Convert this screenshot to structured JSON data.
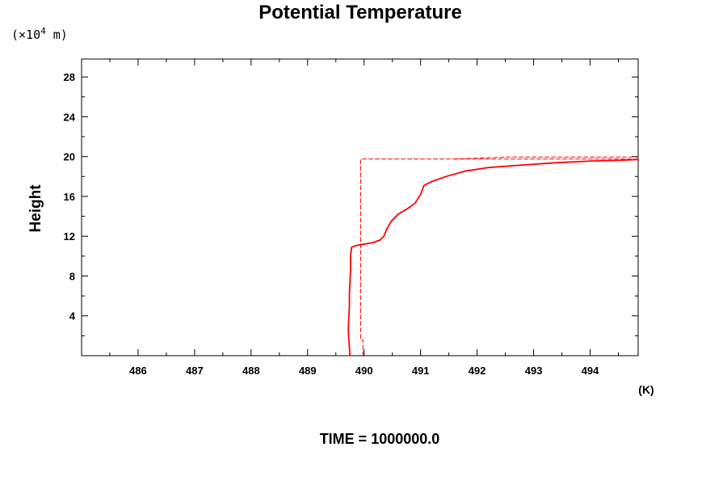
{
  "chart_data": {
    "type": "line",
    "title": "Potential Temperature",
    "ylabel": "Height",
    "y_unit_prefix": "(×10",
    "y_unit_exponent": "4",
    "y_unit_suffix": " m)",
    "x_unit": "(K)",
    "footer": "TIME = 1000000.0",
    "xlim": [
      485.0,
      494.85
    ],
    "ylim": [
      0,
      29.8
    ],
    "x_ticks": [
      486,
      487,
      488,
      489,
      490,
      491,
      492,
      493,
      494
    ],
    "x_tick_labels": [
      "486",
      "487",
      "488",
      "489",
      "490",
      "491",
      "492",
      "493",
      "494"
    ],
    "y_ticks": [
      4,
      8,
      12,
      16,
      20,
      24,
      28
    ],
    "y_tick_labels": [
      "4",
      "8",
      "12",
      "16",
      "20",
      "24",
      "28"
    ],
    "grid": false,
    "colors": {
      "series": "#ff0000",
      "axes": "#000000",
      "background": "#ffffff"
    },
    "series": [
      {
        "style": "solid",
        "points": [
          [
            489.75,
            0.0
          ],
          [
            489.74,
            0.8
          ],
          [
            489.73,
            1.6
          ],
          [
            489.72,
            2.6
          ],
          [
            489.73,
            3.8
          ],
          [
            489.74,
            5.0
          ],
          [
            489.74,
            6.2
          ],
          [
            489.75,
            7.4
          ],
          [
            489.76,
            8.6
          ],
          [
            489.76,
            9.8
          ],
          [
            489.77,
            10.5
          ],
          [
            489.78,
            10.9
          ],
          [
            489.85,
            11.05
          ],
          [
            490.0,
            11.2
          ],
          [
            490.15,
            11.35
          ],
          [
            490.28,
            11.6
          ],
          [
            490.35,
            12.0
          ],
          [
            490.4,
            12.7
          ],
          [
            490.48,
            13.5
          ],
          [
            490.6,
            14.2
          ],
          [
            490.75,
            14.7
          ],
          [
            490.9,
            15.3
          ],
          [
            491.0,
            16.2
          ],
          [
            491.06,
            17.1
          ],
          [
            491.2,
            17.5
          ],
          [
            491.45,
            18.0
          ],
          [
            491.8,
            18.55
          ],
          [
            492.2,
            18.9
          ],
          [
            492.8,
            19.15
          ],
          [
            493.4,
            19.38
          ],
          [
            494.0,
            19.55
          ],
          [
            494.5,
            19.62
          ],
          [
            494.85,
            19.7
          ]
        ]
      },
      {
        "style": "dashed",
        "points": [
          [
            489.98,
            0.0
          ],
          [
            489.98,
            1.6
          ],
          [
            489.94,
            1.6
          ],
          [
            489.94,
            19.75
          ],
          [
            494.85,
            19.75
          ]
        ]
      },
      {
        "style": "dashed",
        "points": [
          [
            491.6,
            19.75
          ],
          [
            492.5,
            19.95
          ],
          [
            494.85,
            19.95
          ]
        ]
      }
    ]
  }
}
